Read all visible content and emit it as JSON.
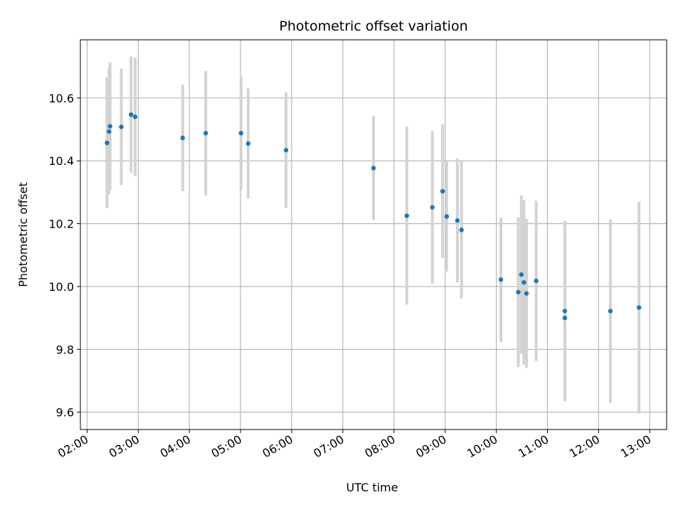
{
  "chart_data": {
    "type": "scatter",
    "title": "Photometric offset variation",
    "xlabel": "UTC time",
    "ylabel": "Photometric offset",
    "x_unit": "UTC hours of day",
    "xlim": [
      1.87,
      13.33
    ],
    "ylim": [
      9.545,
      10.785
    ],
    "grid": true,
    "marker_color": "#1f77b4",
    "errorbar_color": "#d3d3d3",
    "x_ticks": [
      {
        "value": 2,
        "label": "02:00"
      },
      {
        "value": 3,
        "label": "03:00"
      },
      {
        "value": 4,
        "label": "04:00"
      },
      {
        "value": 5,
        "label": "05:00"
      },
      {
        "value": 6,
        "label": "06:00"
      },
      {
        "value": 7,
        "label": "07:00"
      },
      {
        "value": 8,
        "label": "08:00"
      },
      {
        "value": 9,
        "label": "09:00"
      },
      {
        "value": 10,
        "label": "10:00"
      },
      {
        "value": 11,
        "label": "11:00"
      },
      {
        "value": 12,
        "label": "12:00"
      },
      {
        "value": 13,
        "label": "13:00"
      }
    ],
    "y_ticks": [
      {
        "value": 9.6,
        "label": "9.6"
      },
      {
        "value": 9.8,
        "label": "9.8"
      },
      {
        "value": 10.0,
        "label": "10.0"
      },
      {
        "value": 10.2,
        "label": "10.2"
      },
      {
        "value": 10.4,
        "label": "10.4"
      },
      {
        "value": 10.6,
        "label": "10.6"
      }
    ],
    "points": [
      {
        "x": 2.39,
        "y": 10.457,
        "err": 0.208
      },
      {
        "x": 2.43,
        "y": 10.493,
        "err": 0.2
      },
      {
        "x": 2.45,
        "y": 10.51,
        "err": 0.203
      },
      {
        "x": 2.67,
        "y": 10.508,
        "err": 0.185
      },
      {
        "x": 2.86,
        "y": 10.547,
        "err": 0.185
      },
      {
        "x": 2.94,
        "y": 10.54,
        "err": 0.188
      },
      {
        "x": 3.87,
        "y": 10.473,
        "err": 0.17
      },
      {
        "x": 4.32,
        "y": 10.488,
        "err": 0.198
      },
      {
        "x": 5.01,
        "y": 10.488,
        "err": 0.18
      },
      {
        "x": 5.15,
        "y": 10.455,
        "err": 0.175
      },
      {
        "x": 5.89,
        "y": 10.434,
        "err": 0.183
      },
      {
        "x": 7.6,
        "y": 10.377,
        "err": 0.165
      },
      {
        "x": 8.25,
        "y": 10.225,
        "err": 0.283
      },
      {
        "x": 8.75,
        "y": 10.252,
        "err": 0.243
      },
      {
        "x": 8.95,
        "y": 10.303,
        "err": 0.213
      },
      {
        "x": 9.03,
        "y": 10.223,
        "err": 0.175
      },
      {
        "x": 9.24,
        "y": 10.21,
        "err": 0.197
      },
      {
        "x": 9.32,
        "y": 10.18,
        "err": 0.218
      },
      {
        "x": 10.09,
        "y": 10.022,
        "err": 0.198
      },
      {
        "x": 10.43,
        "y": 9.982,
        "err": 0.238
      },
      {
        "x": 10.49,
        "y": 10.038,
        "err": 0.252
      },
      {
        "x": 10.54,
        "y": 10.013,
        "err": 0.262
      },
      {
        "x": 10.59,
        "y": 9.978,
        "err": 0.237
      },
      {
        "x": 10.78,
        "y": 10.018,
        "err": 0.255
      },
      {
        "x": 11.34,
        "y": 9.922,
        "err": 0.287
      },
      {
        "x": 11.34,
        "y": 9.9,
        "err": 0.18
      },
      {
        "x": 12.23,
        "y": 9.922,
        "err": 0.292
      },
      {
        "x": 12.79,
        "y": 9.933,
        "err": 0.337
      }
    ]
  }
}
